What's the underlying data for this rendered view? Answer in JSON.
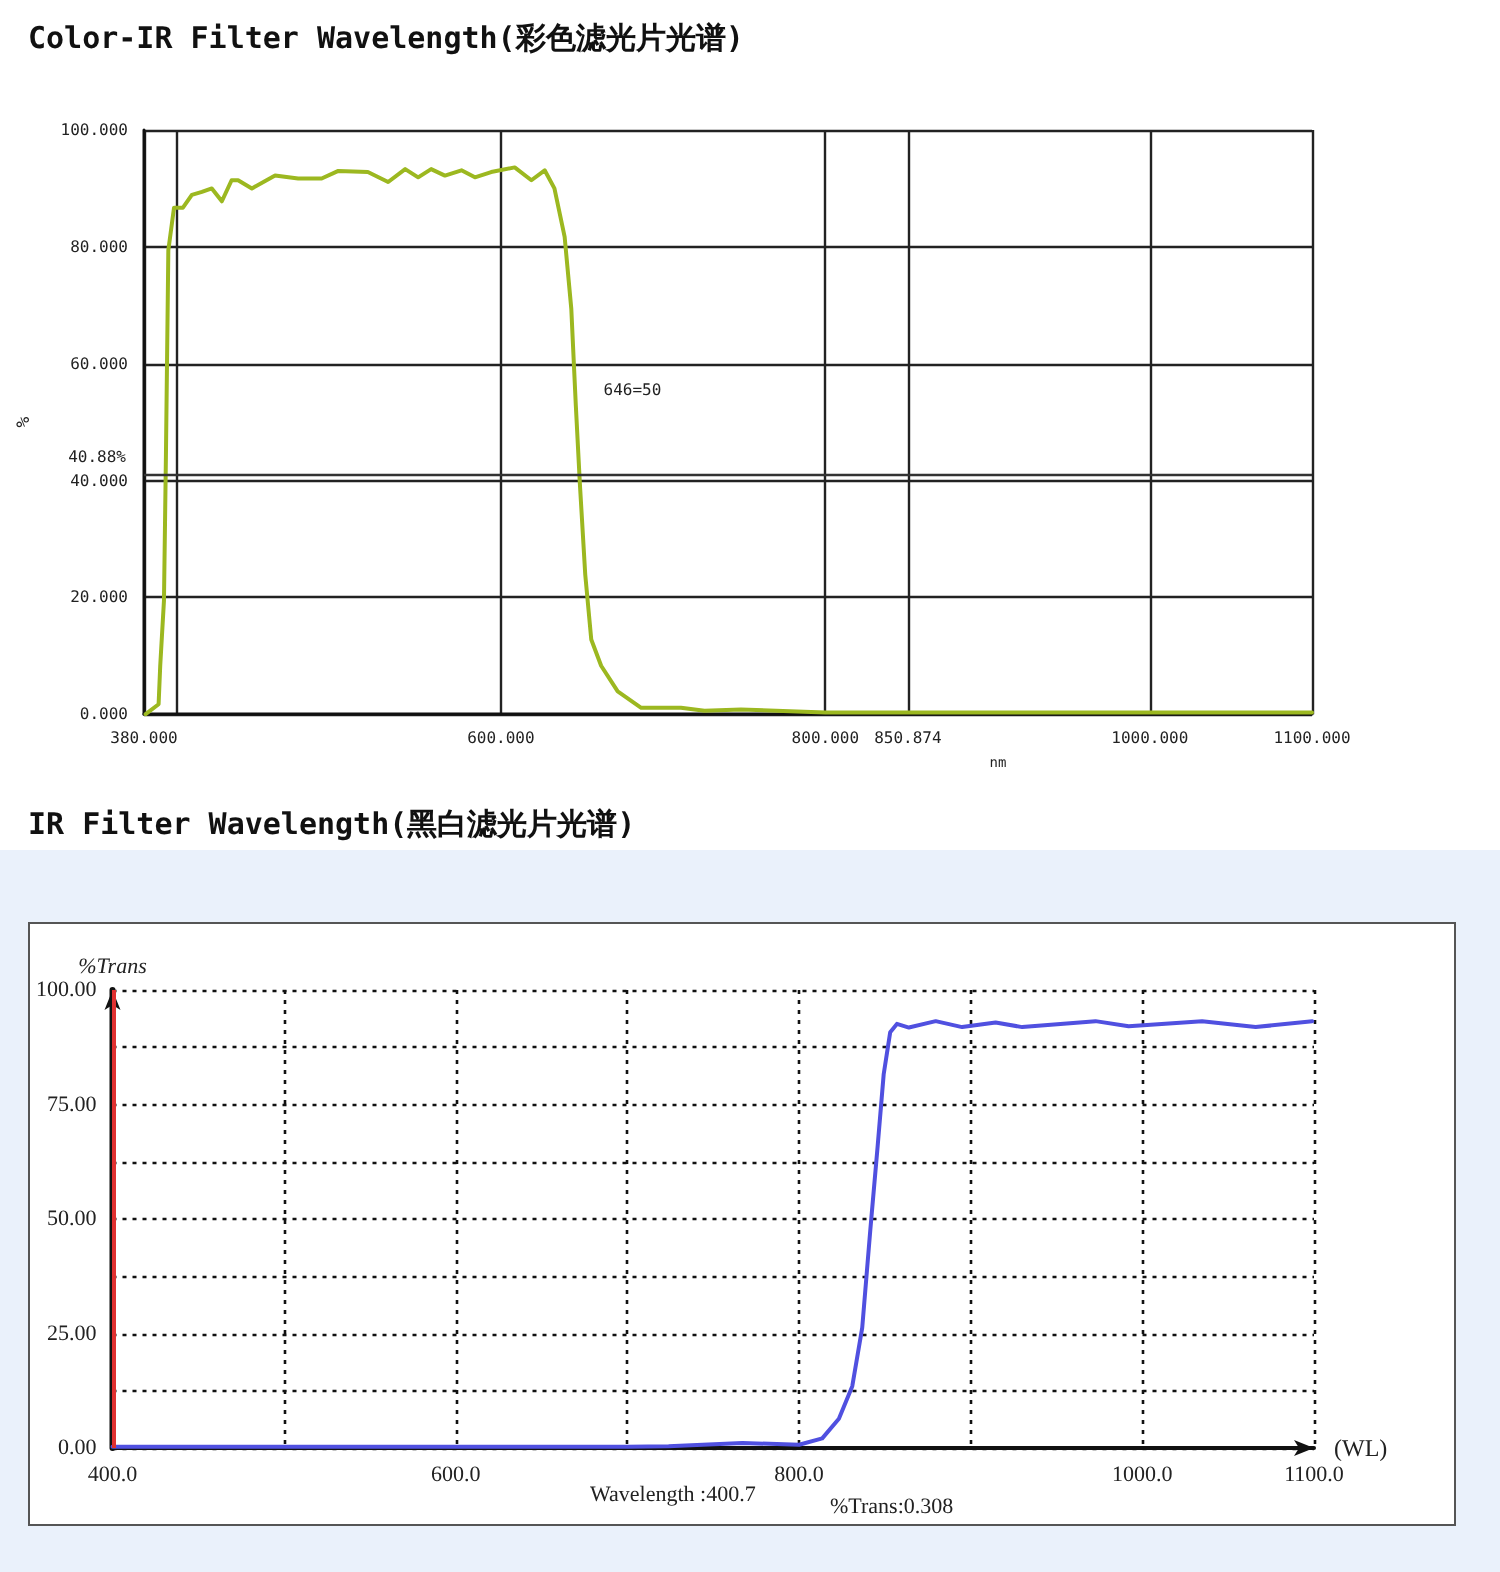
{
  "chart_data": [
    {
      "type": "line",
      "title": "Color-IR Filter Wavelength(彩色滤光片光谱)",
      "xlabel": "nm",
      "ylabel": "%",
      "grid": true,
      "marker": "none",
      "line_style": "solid",
      "xlim": [
        380,
        1100
      ],
      "ylim": [
        0,
        100
      ],
      "xticks": [
        {
          "value": 380,
          "label": "380.000"
        },
        {
          "value": 400,
          "label": null
        },
        {
          "value": 600,
          "label": "600.000"
        },
        {
          "value": 800,
          "label": "800.000"
        },
        {
          "value": 850.874,
          "label": "850.874"
        },
        {
          "value": 1000,
          "label": "1000.000"
        },
        {
          "value": 1100,
          "label": "1100.000"
        }
      ],
      "yticks": [
        {
          "value": 0,
          "label": "0.000"
        },
        {
          "value": 20,
          "label": "20.000"
        },
        {
          "value": 40,
          "label": "40.000"
        },
        {
          "value": 60,
          "label": "60.000"
        },
        {
          "value": 80,
          "label": "80.000"
        },
        {
          "value": 100,
          "label": "100.000"
        }
      ],
      "ref_lines": [
        {
          "axis": "y",
          "value": 40.88,
          "label": "40.88%"
        }
      ],
      "annotations": [
        {
          "text": "646=50",
          "x": 646,
          "y": 50
        }
      ],
      "series": [
        {
          "color": "#9cb820",
          "x": [
            381,
            389,
            390,
            392.3,
            393.5,
            395,
            398.5,
            404,
            409.5,
            415.7,
            421.8,
            428,
            434,
            438,
            446.5,
            460.8,
            475,
            489.5,
            499.8,
            518,
            530.5,
            541,
            549,
            557,
            565.5,
            575.7,
            584,
            594,
            608.5,
            618.8,
            627,
            633,
            639.3,
            643.4,
            646.2,
            648.7,
            652,
            655.7,
            661.8,
            672,
            686.5,
            711,
            725.5,
            748,
            800,
            850,
            900,
            950,
            1000,
            1050,
            1100
          ],
          "values": [
            0,
            1.7,
            8.3,
            19.4,
            43.9,
            79.4,
            86.7,
            86.7,
            88.9,
            89.4,
            90,
            87.8,
            91.4,
            91.4,
            90,
            92.2,
            91.7,
            91.7,
            93,
            92.8,
            91.1,
            93.3,
            91.9,
            93.3,
            92.2,
            93.1,
            91.9,
            92.8,
            93.6,
            91.4,
            93.1,
            90,
            81.7,
            69.4,
            52.8,
            39.4,
            23.9,
            12.8,
            8.3,
            3.9,
            1.1,
            1.1,
            0.6,
            0.8,
            0.3,
            0.3,
            0.3,
            0.3,
            0.3,
            0.3,
            0.3
          ]
        }
      ]
    },
    {
      "type": "line",
      "title": "IR Filter Wavelength(黑白滤光片光谱)",
      "xlabel": "(WL)",
      "ylabel": "%Trans",
      "grid": true,
      "marker": "none",
      "line_style": "solid",
      "xlim": [
        400,
        1100
      ],
      "ylim": [
        0,
        100
      ],
      "xticks": [
        {
          "value": 400,
          "label": "400.0"
        },
        {
          "value": 500,
          "label": null
        },
        {
          "value": 600,
          "label": "600.0"
        },
        {
          "value": 700,
          "label": null
        },
        {
          "value": 800,
          "label": "800.0"
        },
        {
          "value": 900,
          "label": null
        },
        {
          "value": 1000,
          "label": "1000.0"
        },
        {
          "value": 1100,
          "label": "1100.0"
        }
      ],
      "yticks": [
        {
          "value": 0,
          "label": "0.00"
        },
        {
          "value": 12.5,
          "label": null
        },
        {
          "value": 25,
          "label": "25.00"
        },
        {
          "value": 37.5,
          "label": null
        },
        {
          "value": 50,
          "label": "50.00"
        },
        {
          "value": 62.5,
          "label": null
        },
        {
          "value": 75,
          "label": "75.00"
        },
        {
          "value": 87.5,
          "label": null
        },
        {
          "value": 100,
          "label": "100.00"
        }
      ],
      "ref_lines": [
        {
          "axis": "x",
          "value": 400.7,
          "color": "#e03030"
        }
      ],
      "annotations": [
        "Wavelength :400.7",
        "%Trans:0.308"
      ],
      "series": [
        {
          "color": "#5050e0",
          "x": [
            400,
            500,
            600,
            700,
            724,
            767,
            800,
            813.5,
            823.2,
            831,
            836.8,
            841.5,
            845.8,
            849.3,
            853.1,
            857,
            864,
            879.6,
            895,
            914.5,
            930,
            972.7,
            992,
            1034.8,
            1066,
            1099
          ],
          "values": [
            0.3,
            0.3,
            0.3,
            0.3,
            0.4,
            1.1,
            0.7,
            2.1,
            6.4,
            13.5,
            26.3,
            47.6,
            66,
            81.6,
            90.8,
            92.6,
            91.8,
            93.2,
            91.9,
            92.9,
            91.9,
            93.2,
            92.1,
            93.2,
            91.9,
            93.2
          ]
        }
      ]
    }
  ]
}
